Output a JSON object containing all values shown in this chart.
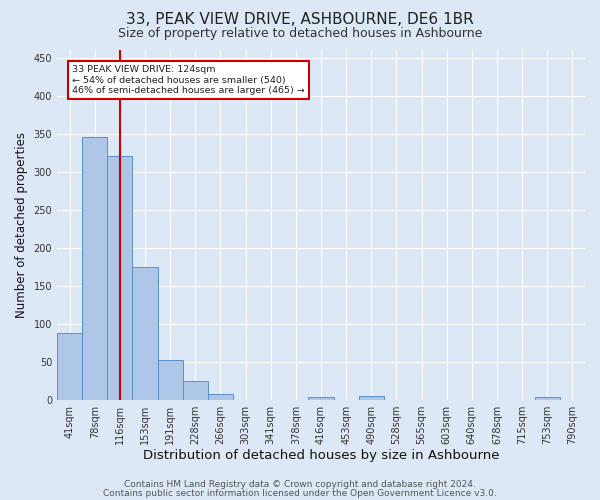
{
  "title": "33, PEAK VIEW DRIVE, ASHBOURNE, DE6 1BR",
  "subtitle": "Size of property relative to detached houses in Ashbourne",
  "xlabel": "Distribution of detached houses by size in Ashbourne",
  "ylabel": "Number of detached properties",
  "bin_labels": [
    "41sqm",
    "78sqm",
    "116sqm",
    "153sqm",
    "191sqm",
    "228sqm",
    "266sqm",
    "303sqm",
    "341sqm",
    "378sqm",
    "416sqm",
    "453sqm",
    "490sqm",
    "528sqm",
    "565sqm",
    "603sqm",
    "640sqm",
    "678sqm",
    "715sqm",
    "753sqm",
    "790sqm"
  ],
  "bar_values": [
    88,
    345,
    320,
    175,
    52,
    25,
    8,
    0,
    0,
    0,
    4,
    0,
    5,
    0,
    0,
    0,
    0,
    0,
    0,
    4,
    0
  ],
  "bar_color": "#aec6e8",
  "bar_edge_color": "#5b8fc9",
  "highlight_index": 2,
  "highlight_color": "#cc0000",
  "annotation_text": "33 PEAK VIEW DRIVE: 124sqm\n← 54% of detached houses are smaller (540)\n46% of semi-detached houses are larger (465) →",
  "annotation_box_color": "#ffffff",
  "annotation_box_edge": "#cc0000",
  "ylim": [
    0,
    460
  ],
  "yticks": [
    0,
    50,
    100,
    150,
    200,
    250,
    300,
    350,
    400,
    450
  ],
  "background_color": "#dce8f5",
  "plot_bg_color": "#dce8f5",
  "footer_line1": "Contains HM Land Registry data © Crown copyright and database right 2024.",
  "footer_line2": "Contains public sector information licensed under the Open Government Licence v3.0.",
  "grid_color": "#ffffff",
  "title_fontsize": 11,
  "subtitle_fontsize": 9,
  "xlabel_fontsize": 9.5,
  "ylabel_fontsize": 8.5,
  "tick_fontsize": 7,
  "footer_fontsize": 6.5
}
